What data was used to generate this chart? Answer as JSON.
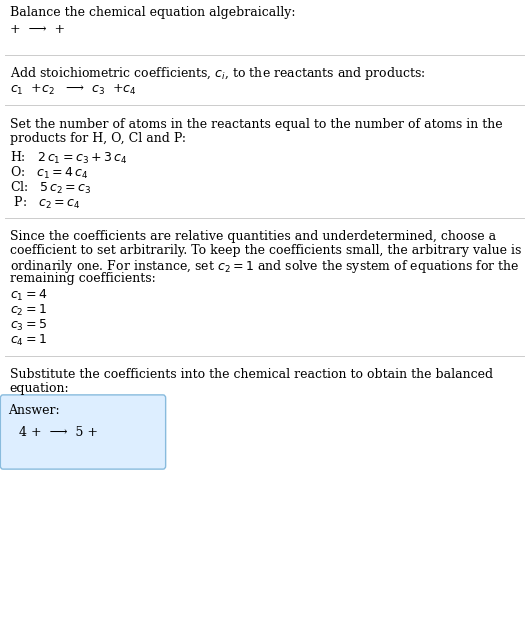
{
  "title": "Balance the chemical equation algebraically:",
  "line1": "+  ⟶  +",
  "sep_color": "#cccccc",
  "bg_color": "#ffffff",
  "answer_box_color": "#ddeeff",
  "answer_box_border": "#88bbdd",
  "fs": 9.0,
  "fs_eq": 9.5,
  "lm": 0.018,
  "sections": {
    "s2_header": "Add stoichiometric coefficients, $c_i$, to the reactants and products:",
    "s2_eq": "$c_1$  +$c_2$   ⟶  $c_3$  +$c_4$",
    "s3_header_l1": "Set the number of atoms in the reactants equal to the number of atoms in the",
    "s3_header_l2": "products for H, O, Cl and P:",
    "s3_lines": [
      "H:   $2\\,c_1 = c_3 + 3\\,c_4$",
      "O:   $c_1 = 4\\,c_4$",
      "Cl:   $5\\,c_2 = c_3$",
      " P:   $c_2 = c_4$"
    ],
    "s4_header_l1": "Since the coefficients are relative quantities and underdetermined, choose a",
    "s4_header_l2": "coefficient to set arbitrarily. To keep the coefficients small, the arbitrary value is",
    "s4_header_l3": "ordinarily one. For instance, set $c_2 = 1$ and solve the system of equations for the",
    "s4_header_l4": "remaining coefficients:",
    "s4_lines": [
      "$c_1 = 4$",
      "$c_2 = 1$",
      "$c_3 = 5$",
      "$c_4 = 1$"
    ],
    "s5_header_l1": "Substitute the coefficients into the chemical reaction to obtain the balanced",
    "s5_header_l2": "equation:",
    "answer_label": "Answer:",
    "answer_eq": "4 +  ⟶  5 + "
  }
}
